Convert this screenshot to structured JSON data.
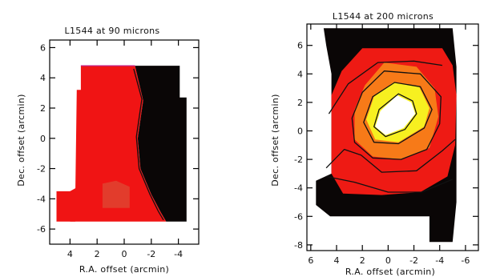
{
  "chart_data": [
    {
      "type": "heatmap",
      "title": "L1544 at 90 microns",
      "xlabel": "R.A. offset (arcmin)",
      "ylabel": "Dec. offset (arcmin)",
      "xlim": [
        5.5,
        -5.5
      ],
      "ylim": [
        -7,
        6.5
      ],
      "xticks": [
        4,
        2,
        0,
        -2,
        -4
      ],
      "yticks": [
        6,
        4,
        2,
        0,
        -2,
        -4,
        -6
      ],
      "colors": {
        "bright": "#f01414",
        "dim": "#e23c2c",
        "dark": "#0a0606"
      },
      "regions": {
        "bright_poly": [
          [
            3.2,
            4.8
          ],
          [
            -0.8,
            4.8
          ],
          [
            -1.4,
            2.5
          ],
          [
            -1.0,
            0.0
          ],
          [
            -1.2,
            -2.0
          ],
          [
            -2.0,
            -3.7
          ],
          [
            -2.7,
            -4.9
          ],
          [
            -3.1,
            -5.5
          ],
          [
            4.0,
            -5.5
          ],
          [
            4.0,
            -3.5
          ],
          [
            3.6,
            -3.3
          ],
          [
            3.5,
            3.2
          ],
          [
            3.2,
            3.2
          ]
        ],
        "dark_poly": [
          [
            -0.8,
            4.8
          ],
          [
            -4.1,
            4.8
          ],
          [
            -4.1,
            2.7
          ],
          [
            -4.6,
            2.7
          ],
          [
            -4.6,
            -5.5
          ],
          [
            -3.1,
            -5.5
          ],
          [
            -2.7,
            -4.9
          ],
          [
            -2.0,
            -3.7
          ],
          [
            -1.2,
            -2.0
          ],
          [
            -1.0,
            0.0
          ],
          [
            -1.4,
            2.5
          ]
        ],
        "dim_patch": [
          [
            1.6,
            -4.6
          ],
          [
            -0.4,
            -4.6
          ],
          [
            -0.4,
            -3.2
          ],
          [
            0.6,
            -2.8
          ],
          [
            1.6,
            -3.0
          ]
        ],
        "left_ext": [
          [
            5.0,
            -3.5
          ],
          [
            3.6,
            -3.5
          ],
          [
            3.6,
            -5.5
          ],
          [
            5.0,
            -5.5
          ]
        ]
      },
      "contours": [
        [
          [
            -0.7,
            4.6
          ],
          [
            -1.3,
            2.6
          ],
          [
            -0.9,
            0.1
          ],
          [
            -1.1,
            -2.0
          ],
          [
            -1.9,
            -3.7
          ],
          [
            -2.5,
            -4.8
          ],
          [
            -2.9,
            -5.4
          ]
        ]
      ]
    },
    {
      "type": "heatmap",
      "title": "L1544 at 200 microns",
      "xlabel": "R.A. offset (arcmin)",
      "ylabel": "Dec. offset (arcmin)",
      "xlim": [
        6.3,
        -7
      ],
      "ylim": [
        -8.4,
        7.5
      ],
      "xticks": [
        6,
        4,
        2,
        0,
        -2,
        -4,
        -6
      ],
      "yticks": [
        6,
        4,
        2,
        0,
        -2,
        -4,
        -6,
        -8
      ],
      "colors": {
        "dark": "#0a0606",
        "red": "#ee1a14",
        "orange": "#f77a18",
        "yellow": "#f7f020",
        "white": "#ffffff"
      },
      "regions": {
        "dark_bg": [
          [
            5.0,
            7.2
          ],
          [
            -5.0,
            7.2
          ],
          [
            -5.3,
            4.5
          ],
          [
            -5.3,
            -5.0
          ],
          [
            -5.0,
            -7.8
          ],
          [
            -3.2,
            -7.8
          ],
          [
            -3.2,
            -6.0
          ],
          [
            4.5,
            -6.0
          ],
          [
            5.6,
            -5.2
          ],
          [
            5.6,
            -3.5
          ],
          [
            4.4,
            -3.0
          ],
          [
            4.4,
            4.0
          ],
          [
            4.8,
            6.0
          ]
        ],
        "red": [
          [
            2.0,
            5.8
          ],
          [
            -4.2,
            5.8
          ],
          [
            -5.0,
            4.6
          ],
          [
            -5.3,
            2.5
          ],
          [
            -5.2,
            -1.0
          ],
          [
            -4.6,
            -3.2
          ],
          [
            -2.5,
            -4.3
          ],
          [
            0.5,
            -4.5
          ],
          [
            3.5,
            -4.4
          ],
          [
            4.4,
            -3.0
          ],
          [
            4.4,
            2.5
          ],
          [
            3.6,
            4.2
          ]
        ],
        "orange": [
          [
            0.3,
            4.8
          ],
          [
            -2.2,
            4.5
          ],
          [
            -3.6,
            3.0
          ],
          [
            -3.9,
            1.0
          ],
          [
            -3.2,
            -1.2
          ],
          [
            -1.0,
            -2.0
          ],
          [
            1.2,
            -1.8
          ],
          [
            2.6,
            -0.6
          ],
          [
            2.6,
            1.5
          ],
          [
            1.8,
            3.2
          ]
        ],
        "yellow": [
          [
            -0.4,
            3.4
          ],
          [
            -2.4,
            3.1
          ],
          [
            -3.2,
            1.6
          ],
          [
            -2.8,
            0.3
          ],
          [
            -0.8,
            -0.8
          ],
          [
            1.0,
            -0.6
          ],
          [
            1.7,
            0.8
          ],
          [
            1.1,
            2.4
          ]
        ],
        "white": [
          [
            -0.7,
            2.5
          ],
          [
            -1.8,
            2.0
          ],
          [
            -2.1,
            1.2
          ],
          [
            -1.2,
            0.2
          ],
          [
            0.2,
            -0.3
          ],
          [
            1.0,
            0.3
          ],
          [
            0.6,
            1.4
          ]
        ]
      },
      "contours": [
        [
          [
            -0.8,
            2.6
          ],
          [
            -1.9,
            2.1
          ],
          [
            -2.2,
            1.2
          ],
          [
            -1.3,
            0.1
          ],
          [
            0.2,
            -0.4
          ],
          [
            1.1,
            0.3
          ],
          [
            0.7,
            1.5
          ]
        ],
        [
          [
            -0.5,
            3.4
          ],
          [
            -2.5,
            3.1
          ],
          [
            -3.4,
            1.5
          ],
          [
            -2.8,
            0.2
          ],
          [
            -0.8,
            -0.9
          ],
          [
            1.1,
            -0.8
          ],
          [
            1.9,
            0.6
          ],
          [
            1.2,
            2.4
          ]
        ],
        [
          [
            0.3,
            4.2
          ],
          [
            -2.5,
            4.0
          ],
          [
            -4.1,
            2.4
          ],
          [
            -4.0,
            0.5
          ],
          [
            -3.0,
            -1.3
          ],
          [
            -1.0,
            -2.0
          ],
          [
            1.2,
            -1.9
          ],
          [
            2.6,
            -0.8
          ],
          [
            2.8,
            0.9
          ],
          [
            2.0,
            2.7
          ]
        ],
        [
          [
            4.6,
            1.2
          ],
          [
            3.1,
            3.3
          ],
          [
            0.8,
            4.8
          ],
          [
            -2.0,
            4.9
          ],
          [
            -4.2,
            4.6
          ]
        ],
        [
          [
            4.8,
            -2.6
          ],
          [
            3.4,
            -1.3
          ],
          [
            2.1,
            -1.7
          ],
          [
            0.5,
            -2.9
          ],
          [
            -2.2,
            -2.8
          ],
          [
            -4.2,
            -1.4
          ],
          [
            -5.2,
            -0.6
          ]
        ],
        [
          [
            4.8,
            -3.2
          ],
          [
            2.6,
            -3.6
          ],
          [
            0.0,
            -4.3
          ],
          [
            -2.6,
            -4.3
          ],
          [
            -5.0,
            -3.4
          ]
        ]
      ]
    }
  ]
}
